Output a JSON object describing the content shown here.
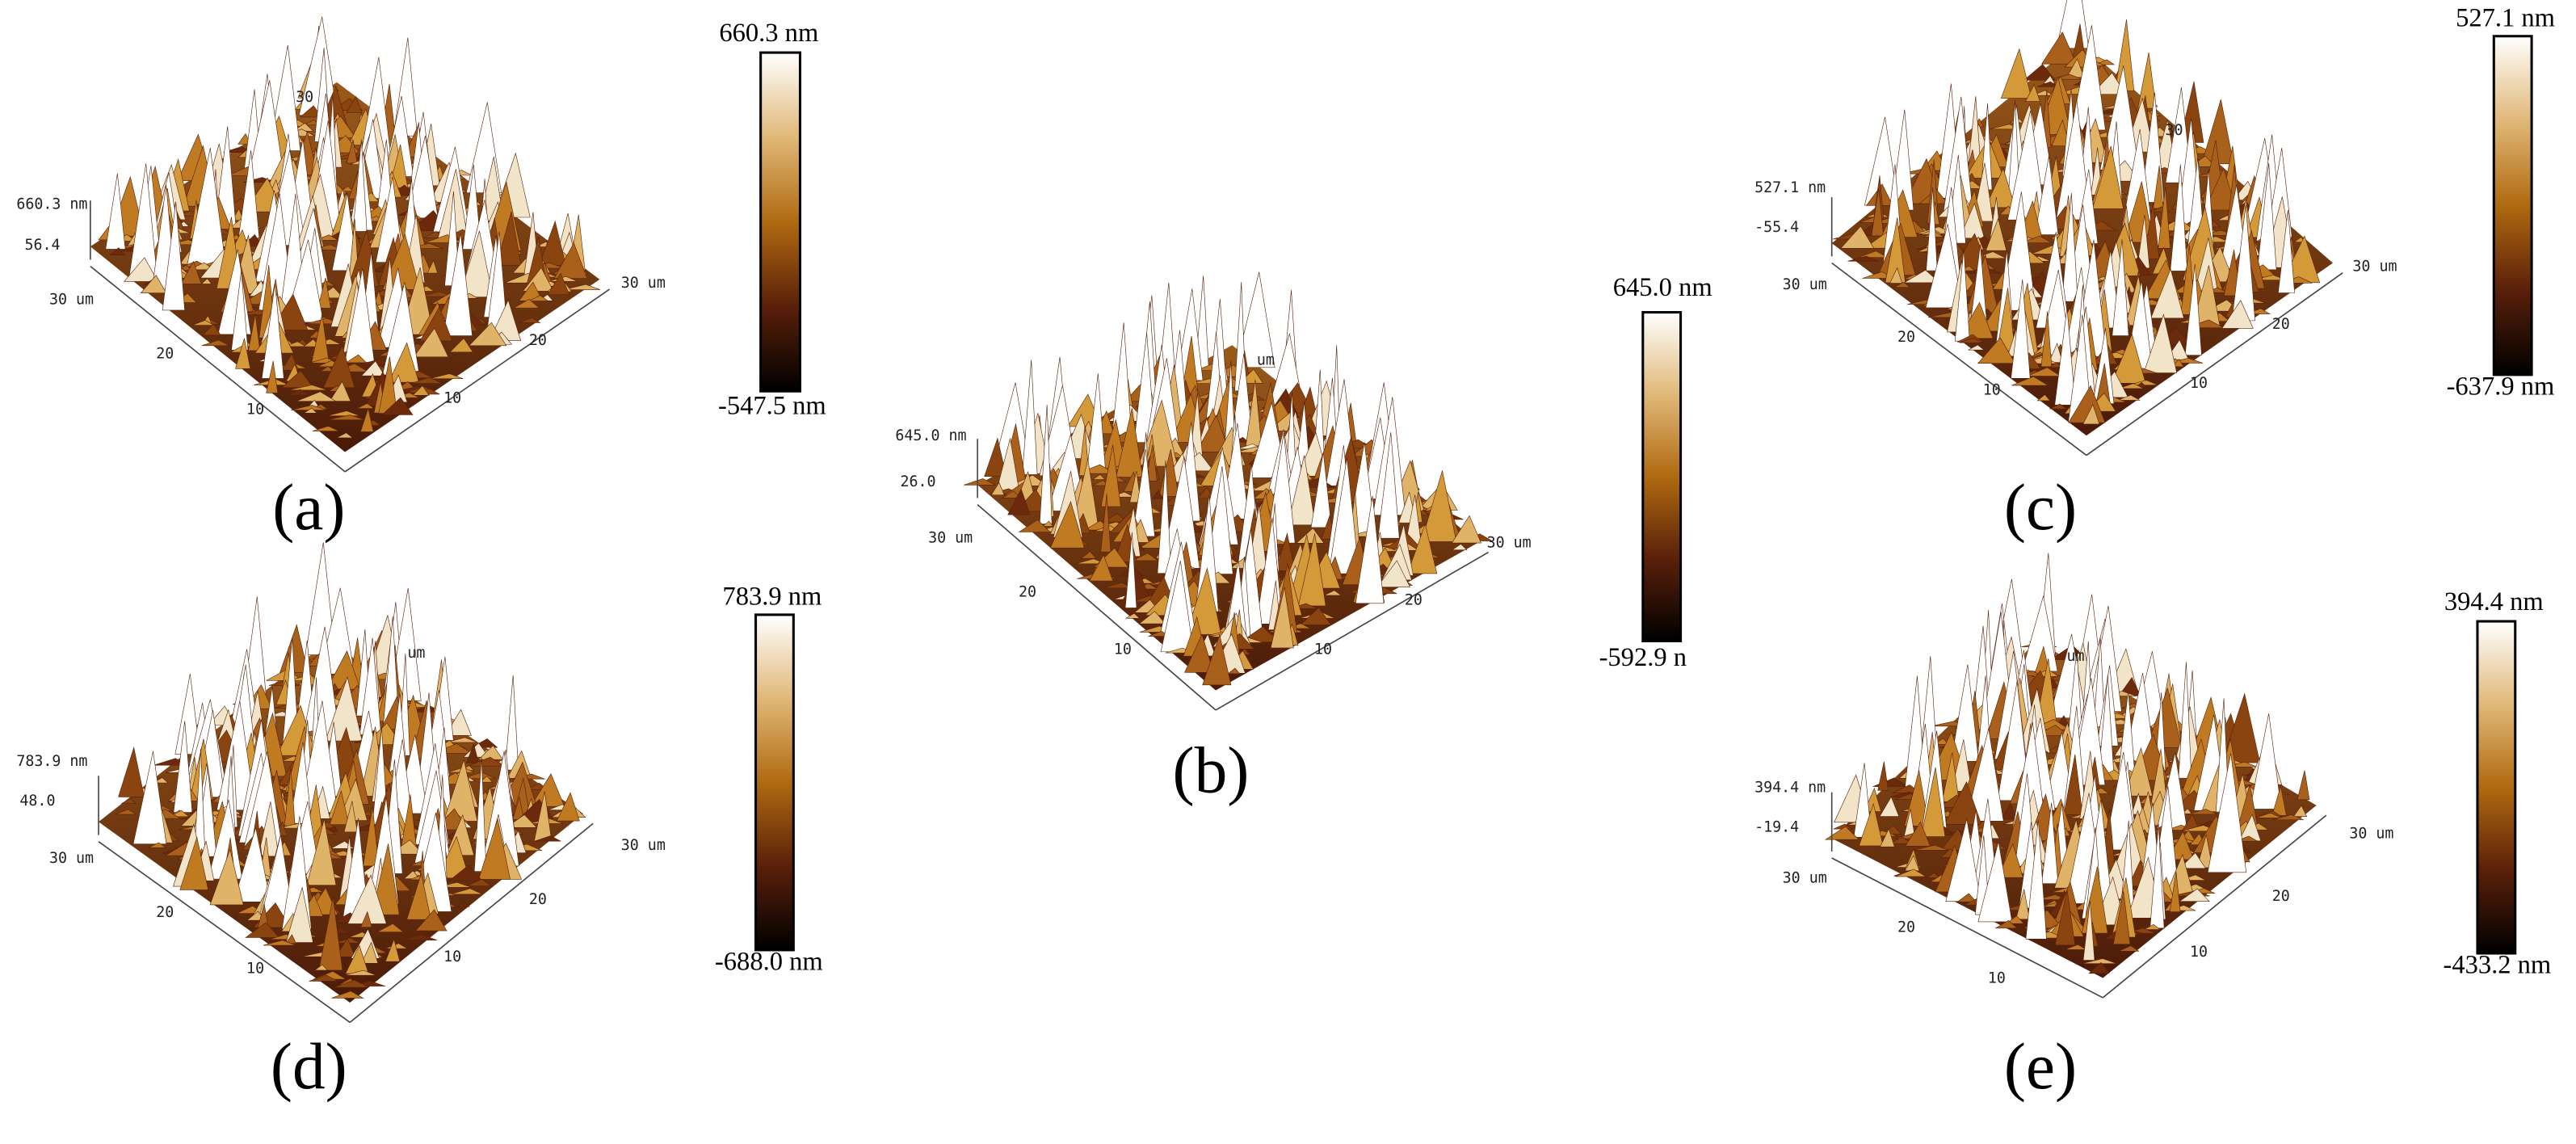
{
  "panels": [
    {
      "label": "(a)",
      "z_top": "660.3 nm",
      "z_mid": "56.4",
      "back_corner": "30",
      "left_axis": [
        "30 um",
        "20",
        "10"
      ],
      "right_axis": [
        "30 um",
        "20",
        "10"
      ],
      "colorbar_top": "660.3 nm",
      "colorbar_bottom": "-547.5 nm"
    },
    {
      "label": "(b)",
      "z_top": "645.0 nm",
      "z_mid": "26.0",
      "back_corner": "um",
      "left_axis": [
        "30 um",
        "20",
        "10"
      ],
      "right_axis": [
        "30 um",
        "20",
        "10"
      ],
      "colorbar_top": "645.0 nm",
      "colorbar_bottom": "-592.9 n"
    },
    {
      "label": "(c)",
      "z_top": "527.1 nm",
      "z_mid": "-55.4",
      "back_corner": "30",
      "left_axis": [
        "30 um",
        "20",
        "10"
      ],
      "right_axis": [
        "30 um",
        "20",
        "10"
      ],
      "colorbar_top": "527.1 nm",
      "colorbar_bottom": "-637.9 nm"
    },
    {
      "label": "(d)",
      "z_top": "783.9 nm",
      "z_mid": "48.0",
      "back_corner": "um",
      "left_axis": [
        "30 um",
        "20",
        "10"
      ],
      "right_axis": [
        "30 um",
        "20",
        "10"
      ],
      "colorbar_top": "783.9 nm",
      "colorbar_bottom": "-688.0 nm"
    },
    {
      "label": "(e)",
      "z_top": "394.4 nm",
      "z_mid": "-19.4",
      "back_corner": "um",
      "left_axis": [
        "30 um",
        "20",
        "10"
      ],
      "right_axis": [
        "30 um",
        "20",
        "10"
      ],
      "colorbar_top": "394.4 nm",
      "colorbar_bottom": "-433.2 nm"
    }
  ]
}
